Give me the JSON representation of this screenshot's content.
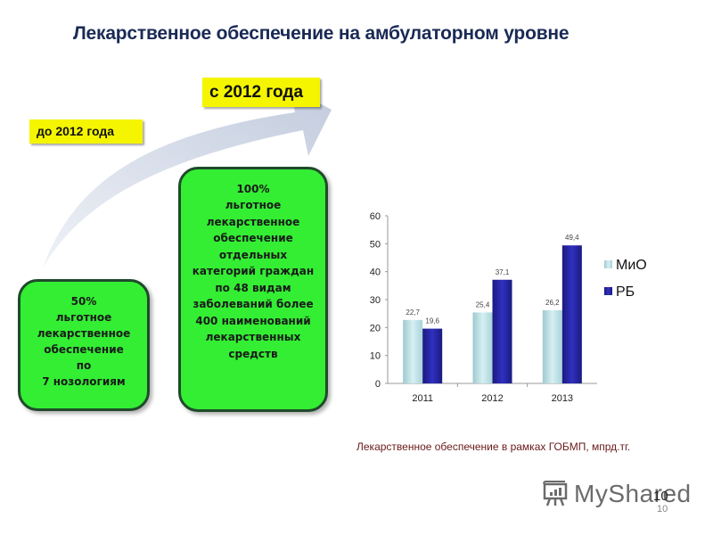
{
  "slide": {
    "title": "Лекарственное обеспечение на амбулаторном уровне",
    "label_before": "до 2012 года",
    "label_after": "с 2012 года",
    "box_before": {
      "lines": [
        "50%",
        "льготное",
        "лекарственное",
        "обеспечение",
        "по",
        "7 нозологиям"
      ]
    },
    "box_after": {
      "lines": [
        "100%",
        "льготное",
        "лекарственное",
        "обеспечение",
        "отдельных",
        "категорий граждан",
        "по 48 видам",
        "заболеваний более",
        "400 наименований",
        "лекарственных",
        "средств"
      ]
    },
    "chart_caption": "Лекарственное обеспечение в рамках ГОБМП, мпрд.тг.",
    "watermark": "MyShared",
    "page_number": "10",
    "page_number_overlay": "10",
    "colors": {
      "label_bg": "#f5f500",
      "box_green": "#33ee33",
      "title": "#1a2a55",
      "series_mio": "#bfe3e8",
      "series_rb": "#2a2aa8"
    }
  },
  "chart_data": {
    "type": "bar",
    "title": "",
    "categories": [
      "2011",
      "2012",
      "2013"
    ],
    "series": [
      {
        "name": "МиО",
        "values": [
          22.7,
          25.4,
          26.2
        ],
        "labels": [
          "22,7",
          "25,4",
          "26,2"
        ],
        "color": "#bfe3e8"
      },
      {
        "name": "РБ",
        "values": [
          19.6,
          37.1,
          49.4
        ],
        "labels": [
          "19,6",
          "37,1",
          "49,4"
        ],
        "color": "#2a2aa8"
      }
    ],
    "xlabel": "",
    "ylabel": "",
    "ylim": [
      0,
      60
    ],
    "yticks": [
      "0",
      "10",
      "20",
      "30",
      "40",
      "50",
      "60"
    ],
    "grid": false,
    "legend_position": "right"
  }
}
